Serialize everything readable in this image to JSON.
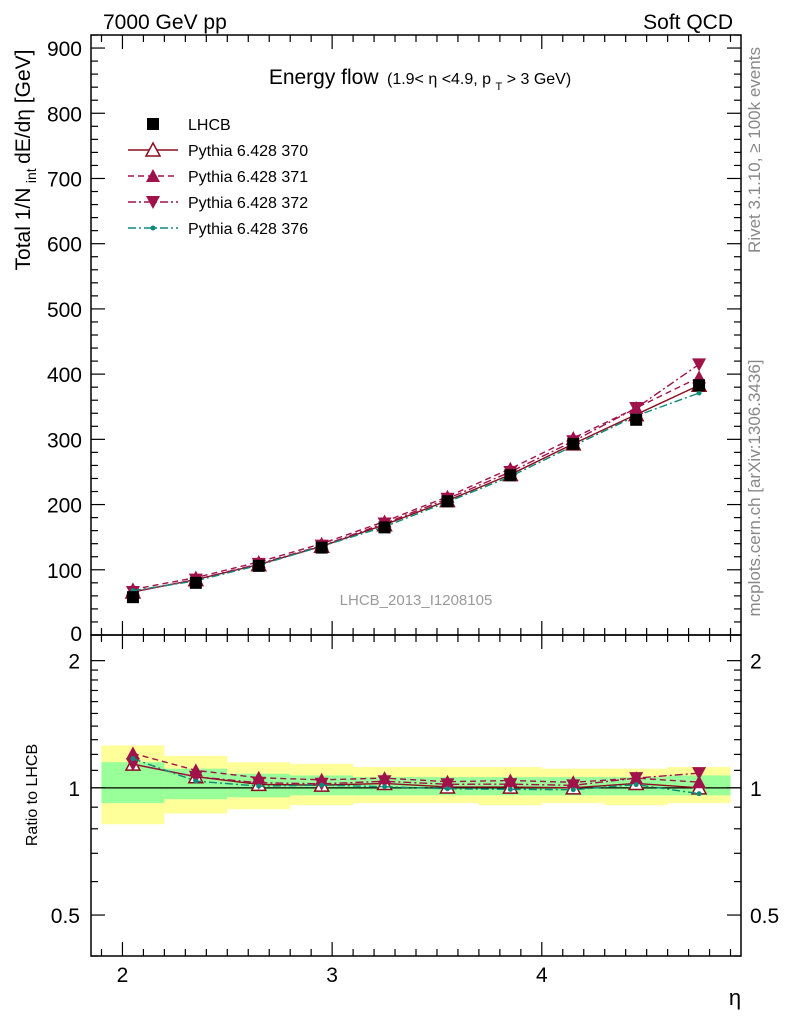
{
  "header": {
    "left": "7000 GeV pp",
    "right": "Soft QCD"
  },
  "side_labels": {
    "rivet": "Rivet 3.1.10, ≥ 100k events",
    "mcplots": "mcplots.cern.ch [arXiv:1306.3436]"
  },
  "chart_data": {
    "type": "line",
    "title": "Energy flow",
    "title_cut": "(1.9< η <4.9, p",
    "title_cut_sub": "T",
    "title_cut_end": " > 3 GeV)",
    "watermark": "LHCB_2013_I1208105",
    "xlabel": "η",
    "ylabel_main": "Total 1/N",
    "ylabel_sub": "int",
    "ylabel_end": " dE/dη [GeV]",
    "ylabel_ratio": "Ratio to LHCB",
    "xlim": [
      1.85,
      4.95
    ],
    "ylim": [
      0,
      920
    ],
    "ratio_ylim": [
      0.4,
      2.3
    ],
    "ratio_scale": "log",
    "x_ticks": [
      "2",
      "3",
      "4"
    ],
    "y_ticks": [
      "100",
      "200",
      "300",
      "400",
      "500",
      "600",
      "700",
      "800",
      "900"
    ],
    "y_zero_label": "0",
    "ratio_ticks": [
      "0.5",
      "1",
      "2"
    ],
    "x": [
      2.05,
      2.35,
      2.65,
      2.95,
      3.25,
      3.55,
      3.85,
      4.15,
      4.45,
      4.75
    ],
    "bins": [
      1.9,
      2.2,
      2.5,
      2.8,
      3.1,
      3.4,
      3.7,
      4.0,
      4.3,
      4.6,
      4.9
    ],
    "band_yellow_lo": [
      0.82,
      0.87,
      0.89,
      0.91,
      0.92,
      0.92,
      0.91,
      0.92,
      0.91,
      0.92
    ],
    "band_yellow_hi": [
      1.26,
      1.19,
      1.15,
      1.14,
      1.12,
      1.12,
      1.12,
      1.11,
      1.11,
      1.12
    ],
    "band_green_lo": [
      0.92,
      0.94,
      0.95,
      0.96,
      0.96,
      0.96,
      0.96,
      0.96,
      0.96,
      0.96
    ],
    "band_green_hi": [
      1.15,
      1.11,
      1.08,
      1.07,
      1.06,
      1.06,
      1.06,
      1.06,
      1.06,
      1.07
    ],
    "series": [
      {
        "name": "LHCB",
        "color": "#000000",
        "marker": "square",
        "dash": "",
        "values": [
          58,
          80,
          106,
          134,
          165,
          205,
          245,
          293,
          330,
          383
        ]
      },
      {
        "name": "Pythia 6.428 370",
        "color": "#8b0e1e",
        "marker": "triangle-open",
        "dash": "",
        "values": [
          66,
          85,
          108,
          136,
          169,
          206,
          246,
          293,
          338,
          383
        ]
      },
      {
        "name": "Pythia 6.428 371",
        "color": "#a0124a",
        "marker": "triangle-up",
        "dash": "6,4",
        "values": [
          70,
          88,
          112,
          140,
          174,
          212,
          255,
          302,
          348,
          395
        ]
      },
      {
        "name": "Pythia 6.428 372",
        "color": "#a0124a",
        "marker": "triangle-down",
        "dash": "8,3,2,3",
        "values": [
          66,
          85,
          109,
          137,
          171,
          209,
          250,
          297,
          348,
          415
        ]
      },
      {
        "name": "Pythia 6.428 376",
        "color": "#0e8a7a",
        "marker": "dot",
        "dash": "8,3,2,3",
        "values": [
          68,
          83,
          107,
          136,
          166,
          204,
          243,
          290,
          336,
          371
        ]
      }
    ]
  }
}
